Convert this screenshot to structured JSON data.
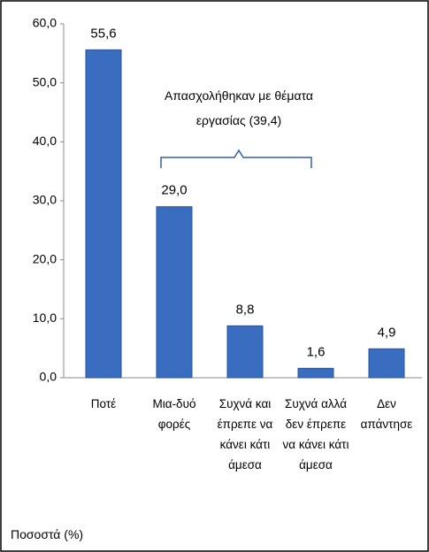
{
  "chart_data": {
    "type": "bar",
    "categories": [
      "Ποτέ",
      "Μια-δυό φορές",
      "Συχνά και έπρεπε να κάνει κάτι άμεσα",
      "Συχνά αλλά δεν έπρεπε να κάνει κάτι άμεσα",
      "Δεν απάντησε"
    ],
    "values": [
      55.6,
      29.0,
      8.8,
      1.6,
      4.9
    ],
    "value_labels": [
      "55,6",
      "29,0",
      "8,8",
      "1,6",
      "4,9"
    ],
    "color": "#3a6cc0",
    "ylim": [
      0,
      60
    ],
    "yticks": [
      {
        "value": 0,
        "label": "0,0"
      },
      {
        "value": 10,
        "label": "10,0"
      },
      {
        "value": 20,
        "label": "20,0"
      },
      {
        "value": 30,
        "label": "30,0"
      },
      {
        "value": 40,
        "label": "40,0"
      },
      {
        "value": 50,
        "label": "50,0"
      },
      {
        "value": 60,
        "label": "60,0"
      }
    ],
    "annotation": "Απασχολήθηκαν με θέματα εργασίας (39,4)",
    "ylabel": "Ποσοστά (%)",
    "grid": false
  }
}
